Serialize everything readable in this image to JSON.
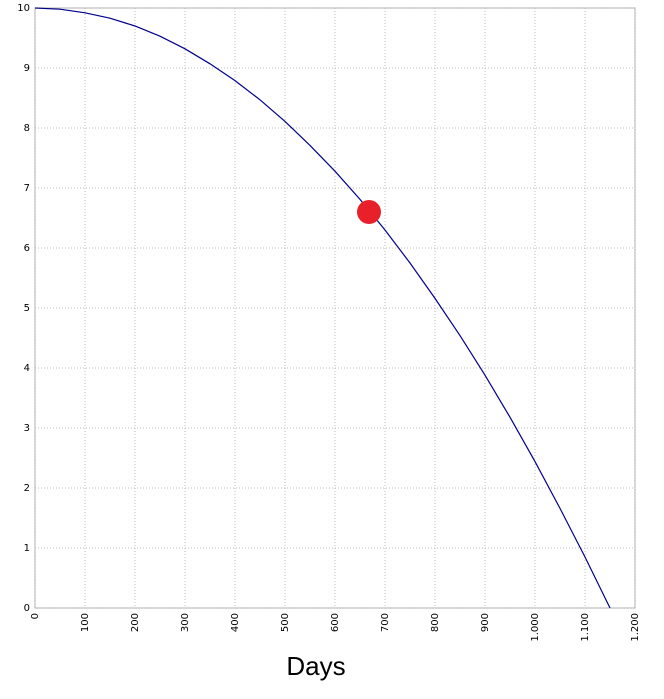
{
  "chart_data": {
    "type": "line",
    "x_label": "Days",
    "x": [
      0,
      50,
      100,
      150,
      200,
      250,
      300,
      350,
      400,
      450,
      500,
      550,
      600,
      650,
      700,
      750,
      800,
      850,
      900,
      950,
      1000,
      1050,
      1100,
      1150
    ],
    "series": [
      {
        "color": "#00008b",
        "values": [
          10,
          9.98,
          9.92,
          9.83,
          9.7,
          9.53,
          9.32,
          9.07,
          8.79,
          8.47,
          8.11,
          7.71,
          7.28,
          6.81,
          6.3,
          5.75,
          5.16,
          4.54,
          3.88,
          3.18,
          2.44,
          1.66,
          0.85,
          0
        ]
      }
    ],
    "points": [
      {
        "x": 668,
        "y": 6.6,
        "color": "#e8202a"
      }
    ],
    "xlim": [
      0,
      1200
    ],
    "xticks": [
      0,
      100,
      200,
      300,
      400,
      500,
      600,
      700,
      800,
      900,
      {
        "value": 1000,
        "label": "1.000"
      },
      {
        "value": 1100,
        "label": "1.100"
      },
      {
        "value": 1200,
        "label": "1.200"
      }
    ],
    "ylim": [
      0,
      10
    ],
    "yticks": [
      0,
      1,
      2,
      3,
      4,
      5,
      6,
      7,
      8,
      9,
      10
    ],
    "grid": true
  }
}
